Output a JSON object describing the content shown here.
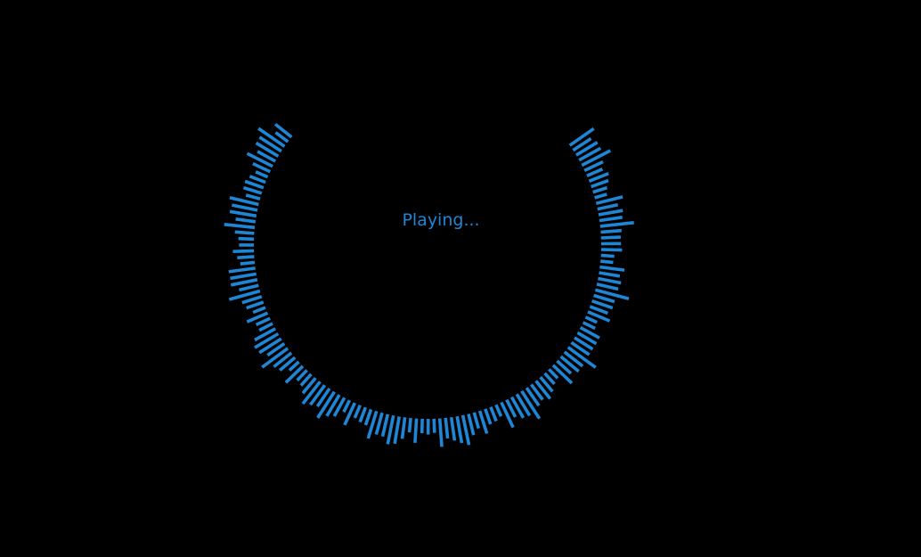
{
  "player": {
    "status": "Playing..."
  },
  "colors": {
    "background": "#000000",
    "accent": "#1f86d6"
  }
}
